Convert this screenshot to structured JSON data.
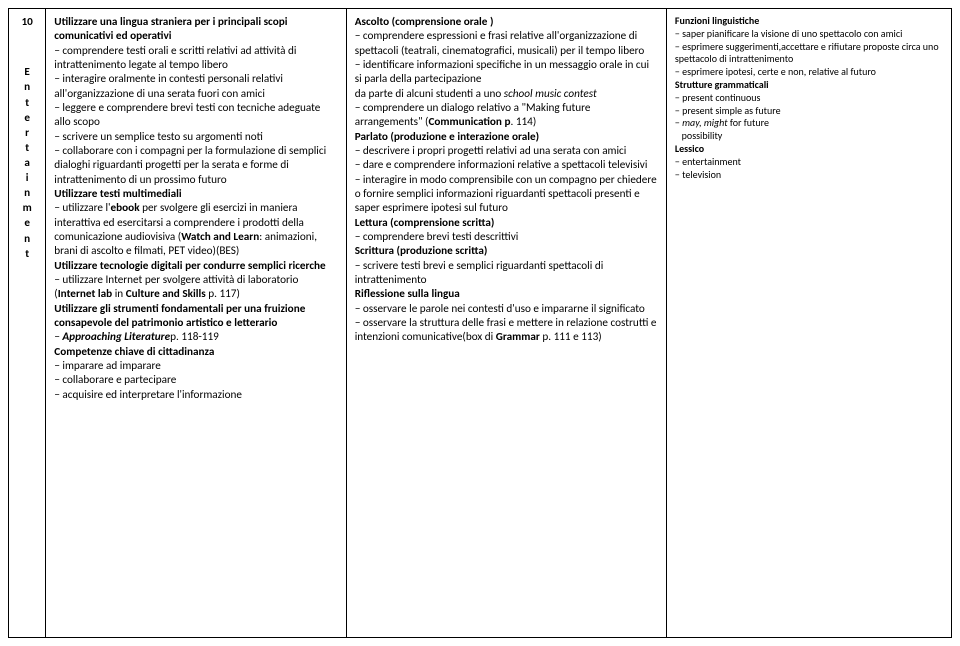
{
  "unit": {
    "number": "10",
    "title_letters": [
      "E",
      "n",
      "t",
      "e",
      "r",
      "t",
      "a",
      "i",
      "n",
      "m",
      "e",
      "n",
      "t"
    ]
  },
  "col1": {
    "h1": "Utilizzare una lingua straniera per i principali scopi comunicativi ed operativi",
    "l1": "− comprendere testi orali e scritti relativi ad attività di intrattenimento legate al tempo libero",
    "l2": "− interagire oralmente in contesti personali relativi all'organizzazione di una serata fuori con amici",
    "l3": "− leggere e comprendere brevi testi con tecniche adeguate allo scopo",
    "l4": "− scrivere un semplice testo su argomenti noti",
    "l5": "− collaborare con i compagni per la formulazione di semplici dialoghi riguardanti progetti per la serata e forme di intrattenimento di un prossimo futuro",
    "h2": "Utilizzare testi multimediali",
    "l6a": "− utilizzare l'",
    "l6b": "ebook",
    "l6c": " per svolgere gli esercizi in maniera interattiva ed esercitarsi a comprendere i prodotti della comunicazione audiovisiva (",
    "l6d": "Watch and Learn",
    "l6e": ": animazioni, brani di ascolto e filmati, PET video)(BES)",
    "h3": "Utilizzare tecnologie digitali per condurre semplici ricerche",
    "l7a": "− utilizzare Internet per svolgere attività di laboratorio (",
    "l7b": "Internet lab",
    "l7c": " in ",
    "l7d": "Culture and Skills",
    "l7e": " p. 117)",
    "h4": "Utilizzare gli strumenti fondamentali per una fruizione consapevole del patrimonio artistico e letterario",
    "l8a": "− ",
    "l8b": "Approaching  Literature",
    "l8c": "p. 118-119",
    "h5": "Competenze chiave di cittadinanza",
    "l9": "− imparare ad imparare",
    "l10": "− collaborare e partecipare",
    "l11": "− acquisire ed interpretare l'informazione"
  },
  "col2": {
    "h1": "Ascolto  (comprensione orale )",
    "l1": "− comprendere espressioni e frasi relative all'organizzazione di spettacoli (teatrali, cinematografici, musicali) per il tempo libero",
    "l2a": "− identificare informazioni specifiche in un messaggio orale in cui si parla della partecipazione",
    "l2b": "da parte di alcuni studenti a uno ",
    "l2c": "school music contest",
    "l3a": "− comprendere un dialogo relativo a \"Making future arrangements\" (",
    "l3b": "Communication p",
    "l3c": ". 114)",
    "h2": "Parlato (produzione e interazione orale)",
    "l4": "− descrivere i propri progetti relativi ad una serata con amici",
    "l5": "− dare e comprendere informazioni relative a spettacoli televisivi",
    "l6": "− interagire in modo comprensibile con un compagno per chiedere o fornire semplici informazioni riguardanti spettacoli presenti e saper esprimere ipotesi sul futuro",
    "h3": "Lettura (comprensione scritta)",
    "l7": "− comprendere brevi testi descrittivi",
    "h4": "Scrittura (produzione scritta)",
    "l8": "− scrivere testi brevi e semplici riguardanti spettacoli di intrattenimento",
    "h5": "Riflessione sulla lingua",
    "l9": "− osservare le parole nei contesti d'uso e impararne il significato",
    "l10a": "− osservare la struttura delle frasi e mettere in relazione costrutti e intenzioni comunicative(box di ",
    "l10b": "Grammar",
    "l10c": " p. 111 e 113)"
  },
  "col3": {
    "h1": "Funzioni linguistiche",
    "l1": "− saper pianificare la visione di uno spettacolo con amici",
    "l2": "− esprimere suggerimenti,accettare e rifiutare proposte circa uno spettacolo di intrattenimento",
    "l3": "− esprimere ipotesi, certe e non, relative al futuro",
    "h2": "Strutture  grammaticali",
    "l4": "− present continuous",
    "l5": "− present simple as future",
    "l6a": "− ",
    "l6b": "may, might",
    "l6c": " for future",
    "l7": "   possibility",
    "h3": "Lessico",
    "l8": "− entertainment",
    "l9": "− television"
  }
}
